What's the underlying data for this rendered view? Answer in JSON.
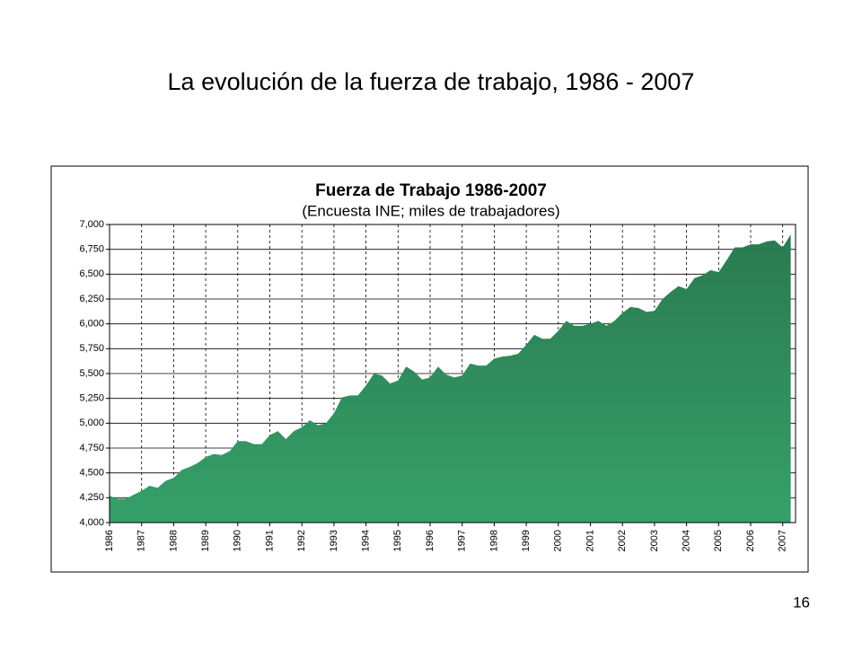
{
  "title": "La evolución de la fuerza de trabajo, 1986 - 2007",
  "page_number": "16",
  "chart_data": {
    "type": "area",
    "title": "Fuerza de  Trabajo 1986-2007",
    "subtitle": "(Encuesta INE; miles de trabajadores)",
    "categories": [
      "1986",
      null,
      null,
      null,
      "1987",
      null,
      null,
      null,
      "1988",
      null,
      null,
      null,
      "1989",
      null,
      null,
      null,
      "1990",
      null,
      null,
      null,
      "1991",
      null,
      null,
      null,
      "1992",
      null,
      null,
      null,
      "1993",
      null,
      null,
      null,
      "1994",
      null,
      null,
      null,
      "1995",
      null,
      null,
      null,
      "1996",
      null,
      null,
      null,
      "1997",
      null,
      null,
      null,
      "1998",
      null,
      null,
      null,
      "1999",
      null,
      null,
      null,
      "2000",
      null,
      null,
      null,
      "2001",
      null,
      null,
      null,
      "2002",
      null,
      null,
      null,
      "2003",
      null,
      null,
      null,
      "2004",
      null,
      null,
      null,
      "2005",
      null,
      null,
      null,
      "2006",
      null,
      null,
      null,
      "2007",
      null
    ],
    "values": [
      4270,
      4240,
      4240,
      4280,
      4320,
      4370,
      4350,
      4420,
      4450,
      4530,
      4560,
      4600,
      4660,
      4690,
      4680,
      4720,
      4820,
      4820,
      4790,
      4790,
      4880,
      4920,
      4840,
      4920,
      4960,
      5030,
      4980,
      5000,
      5100,
      5260,
      5280,
      5280,
      5380,
      5500,
      5480,
      5400,
      5430,
      5570,
      5520,
      5440,
      5460,
      5570,
      5490,
      5460,
      5480,
      5600,
      5580,
      5580,
      5650,
      5670,
      5680,
      5700,
      5790,
      5890,
      5850,
      5850,
      5930,
      6030,
      5980,
      5980,
      6000,
      6030,
      5980,
      6030,
      6110,
      6170,
      6160,
      6120,
      6130,
      6250,
      6320,
      6380,
      6350,
      6460,
      6490,
      6540,
      6520,
      6640,
      6770,
      6770,
      6800,
      6800,
      6830,
      6840,
      6770,
      6900
    ],
    "color": "#2f8a5c",
    "ylim": [
      4000,
      7000
    ],
    "yticks": [
      {
        "value": 4000,
        "label": "4,000"
      },
      {
        "value": 4250,
        "label": "4,250"
      },
      {
        "value": 4500,
        "label": "4,500"
      },
      {
        "value": 4750,
        "label": "4,750"
      },
      {
        "value": 5000,
        "label": "5,000"
      },
      {
        "value": 5250,
        "label": "5,250"
      },
      {
        "value": 5500,
        "label": "5,500"
      },
      {
        "value": 5750,
        "label": "5,750"
      },
      {
        "value": 6000,
        "label": "6,000"
      },
      {
        "value": 6250,
        "label": "6,250"
      },
      {
        "value": 6500,
        "label": "6,500"
      },
      {
        "value": 6750,
        "label": "6,750"
      },
      {
        "value": 7000,
        "label": "7,000"
      }
    ],
    "grid": true
  }
}
